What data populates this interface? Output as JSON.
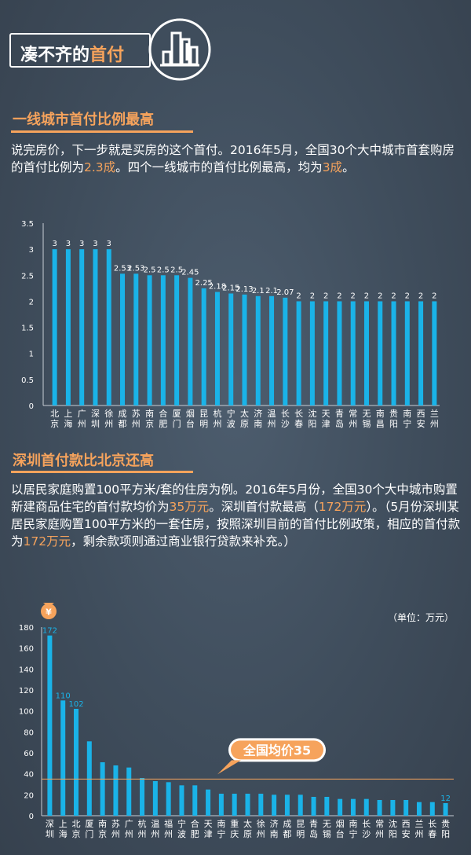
{
  "header": {
    "title_prefix": "凑不齐的",
    "title_highlight": "首付"
  },
  "colors": {
    "accent": "#f6a35c",
    "bar": "#1ab3e8",
    "text": "#ffffff"
  },
  "section1": {
    "title": "一线城市首付比例最高",
    "p1": "说完房价，下一步就是买房的这个首付。2016年5月，全国30个大中城市首套购房的首付比例为",
    "p2": "2.3成",
    "p3": "。四个一线城市的首付比例最高，均为",
    "p4": "3成",
    "p5": "。"
  },
  "section2": {
    "title": "深圳首付款比北京还高",
    "p1": "以居民家庭购置100平方米/套的住房为例。2016年5月份，全国30个大中城市购置新建商品住宅的首付款均价为",
    "p2": "35万元",
    "p3": "。深圳首付款最高（",
    "p4": "172万元",
    "p5": "）。（5月份深圳某居民家庭购置100平方米的一套住房，按照深圳目前的首付比例政策，相应的首付款为",
    "p6": "172万元",
    "p7": "，剩余款项则通过商业银行贷款来补充。）"
  },
  "chart_data": [
    {
      "type": "bar",
      "title": "",
      "xlabel": "",
      "ylabel": "",
      "ylim": [
        0,
        3.5
      ],
      "yticks": [
        "0",
        "0.5",
        "1",
        "1.5",
        "2",
        "2.5",
        "3",
        "3.5"
      ],
      "categories": [
        "北京",
        "上海",
        "广州",
        "深圳",
        "徐州",
        "成都",
        "苏州",
        "南京",
        "合肥",
        "厦门",
        "烟台",
        "昆明",
        "杭州",
        "宁波",
        "太原",
        "济南",
        "温州",
        "长沙",
        "长春",
        "沈阳",
        "天津",
        "青岛",
        "常州",
        "无锡",
        "南昌",
        "贵阳",
        "南宁",
        "西安",
        "兰州"
      ],
      "values": [
        3,
        3,
        3,
        3,
        3,
        2.53,
        2.53,
        2.5,
        2.5,
        2.5,
        2.45,
        2.25,
        2.18,
        2.15,
        2.13,
        2.1,
        2.1,
        2.07,
        2,
        2,
        2,
        2,
        2,
        2,
        2,
        2,
        2,
        2,
        2
      ],
      "labels": [
        "3",
        "3",
        "3",
        "3",
        "3",
        "2.53",
        "2.53",
        "2.5",
        "2.5",
        "2.5",
        "2.45",
        "2.25",
        "2.18",
        "2.15",
        "2.13",
        "2.1",
        "2.1",
        "2.07",
        "2",
        "2",
        "2",
        "2",
        "2",
        "2",
        "2",
        "2",
        "2",
        "2",
        "2"
      ]
    },
    {
      "type": "bar",
      "title": "",
      "unit_label": "（单位：万元）",
      "ylim": [
        0,
        180
      ],
      "yticks": [
        "0",
        "20",
        "40",
        "60",
        "80",
        "100",
        "120",
        "140",
        "160",
        "180"
      ],
      "average_value": 35,
      "average_label": "全国均价35",
      "coin_icon_text": "¥",
      "categories": [
        "深圳",
        "上海",
        "北京",
        "厦门",
        "南京",
        "苏州",
        "广州",
        "杭州",
        "温州",
        "福州",
        "宁波",
        "合肥",
        "天津",
        "南宁",
        "重庆",
        "太原",
        "徐州",
        "济南",
        "成都",
        "昆明",
        "青岛",
        "无锡",
        "烟台",
        "南宁",
        "长沙",
        "常州",
        "沈阳",
        "西安",
        "兰州",
        "长春",
        "贵阳"
      ],
      "values": [
        172,
        110,
        102,
        71,
        51,
        48,
        46,
        36,
        33,
        32,
        29,
        29,
        25,
        21,
        21,
        21,
        21,
        20,
        20,
        20,
        18,
        18,
        16,
        16,
        16,
        15,
        15,
        15,
        13,
        13,
        12
      ],
      "labels": [
        "172",
        "110",
        "102",
        "",
        "",
        "",
        "",
        "",
        "",
        "",
        "",
        "",
        "",
        "",
        "",
        "",
        "",
        "",
        "",
        "",
        "",
        "",
        "",
        "",
        "",
        "",
        "",
        "",
        "",
        "",
        "12"
      ]
    }
  ]
}
